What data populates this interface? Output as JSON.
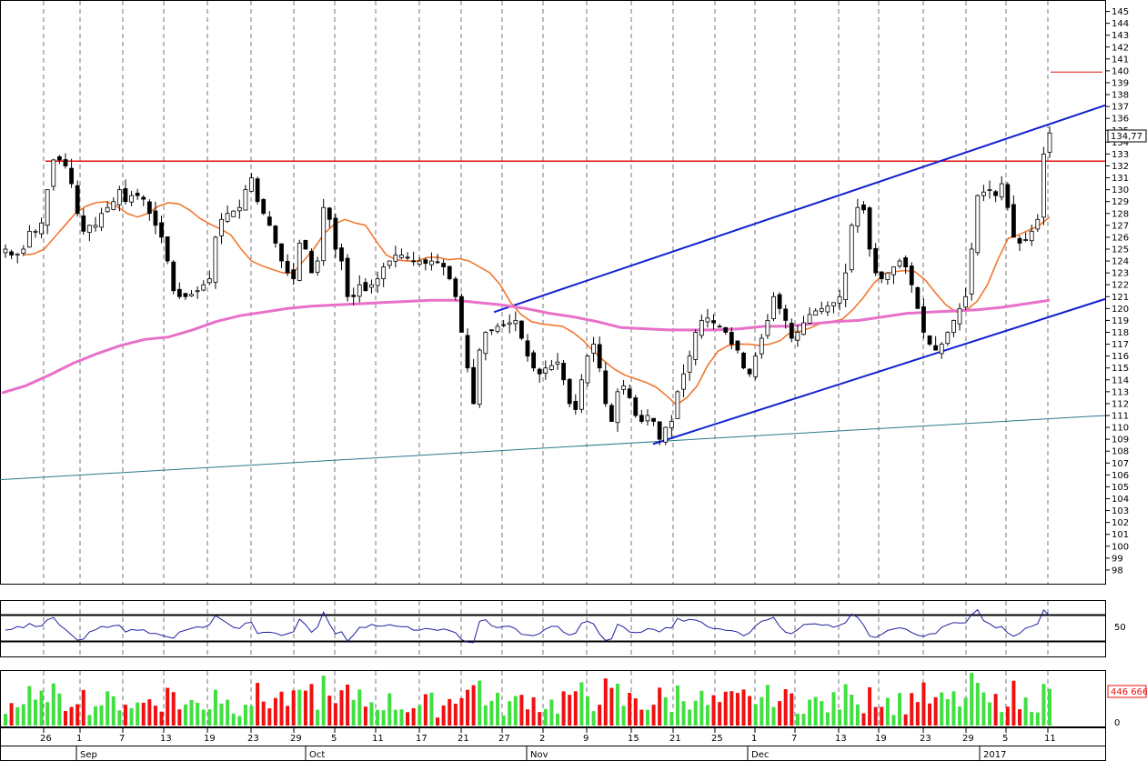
{
  "chart_data": [
    {
      "type": "candlestick",
      "title": "",
      "y_range": [
        97,
        145.5
      ],
      "y_ticks": [
        98,
        99,
        100,
        101,
        102,
        103,
        104,
        105,
        106,
        107,
        108,
        109,
        110,
        111,
        112,
        113,
        114,
        115,
        116,
        117,
        118,
        119,
        120,
        121,
        122,
        123,
        124,
        125,
        126,
        127,
        128,
        129,
        130,
        131,
        132,
        133,
        134,
        135,
        136,
        137,
        138,
        139,
        140,
        141,
        142,
        143,
        144,
        145
      ],
      "last_price_label": "134,77",
      "last_price": 134.77,
      "close_series_approx": [
        125,
        124.5,
        124.6,
        125,
        126.5,
        126.5,
        127.2,
        130,
        132.5,
        132.5,
        132,
        130.5,
        128,
        126.5,
        127,
        127,
        128,
        128.5,
        129,
        130,
        129,
        129.5,
        129.5,
        129.2,
        128,
        127,
        126,
        124,
        121.5,
        121,
        121,
        121.2,
        121.5,
        122,
        122.5,
        126,
        127.5,
        128,
        128.2,
        128.5,
        130,
        131,
        129,
        128,
        127,
        125.5,
        124,
        123,
        122.5,
        125.5,
        125,
        123,
        124,
        128.5,
        127.5,
        125,
        124,
        121,
        121,
        122,
        121.5,
        122,
        122.5,
        123.5,
        124,
        124.5,
        124.5,
        124.3,
        124,
        124,
        123.8,
        124,
        123.9,
        123.5,
        122.5,
        121,
        118,
        115,
        112,
        116.5,
        118,
        118.2,
        118.5,
        118.6,
        118.8,
        119,
        117.5,
        116,
        115,
        114.5,
        115,
        115.2,
        115.5,
        114,
        112,
        111.5,
        114,
        116,
        117,
        115,
        112,
        110.5,
        113,
        113.5,
        112.5,
        111,
        110.5,
        111,
        110.5,
        109,
        110,
        110.5,
        113,
        114.5,
        116,
        118,
        119,
        119.2,
        118.8,
        118.5,
        118,
        117,
        116.5,
        115,
        114.5,
        116,
        117.5,
        119,
        121,
        120,
        119,
        117.5,
        118,
        118.8,
        119.5,
        119.8,
        120,
        120.2,
        120.5,
        121,
        123,
        127,
        128.5,
        128.3,
        125,
        123,
        122.5,
        123,
        123.5,
        124,
        123.5,
        122,
        120,
        118,
        117,
        116.5,
        117,
        118,
        119,
        120,
        121,
        125,
        129.5,
        129.8,
        130,
        129.5,
        130.5,
        128.5,
        126,
        125.5,
        125.8,
        126.5,
        127.5,
        133,
        134.77
      ],
      "moving_averages": [
        {
          "color": "#f07830",
          "values_approx": [
            124.5,
            124.6,
            125,
            126,
            127,
            128,
            128.6,
            128.9,
            129,
            128.6,
            128,
            127.7,
            128,
            128.6,
            128.9,
            128.8,
            128.3,
            127.6,
            127.1,
            126.7,
            126.2,
            125,
            124,
            123.6,
            123.3,
            123,
            123,
            124,
            125,
            126.3,
            127.1,
            127.5,
            127.2,
            127,
            125.7,
            124.5,
            124.1,
            124,
            124,
            124.3,
            124.3,
            124.1,
            124.2,
            124,
            123.5,
            123,
            122,
            120.5,
            119.5,
            118.9,
            118.7,
            118.6,
            118.5,
            118,
            117.3,
            116.4,
            115.6,
            114.9,
            114.4,
            114.1,
            113.8,
            113.4,
            112.7,
            111.9,
            112.5,
            113.5,
            115.2,
            116.4,
            116.9,
            117,
            117,
            116.9,
            117,
            117.3,
            118,
            118.1,
            118.4,
            118.8,
            118.9,
            119.1,
            119.9,
            120.9,
            122.1,
            122.9,
            123.1,
            123.2,
            123.1,
            122.4,
            121.3,
            120.3,
            119.7,
            119.9,
            120.6,
            122,
            124.1,
            125.9,
            126.2,
            126.6,
            127,
            127.7
          ]
        },
        {
          "color": "#e870c8",
          "values_approx": [
            112.9,
            113.5,
            114.4,
            115.4,
            116.2,
            116.9,
            117.4,
            117.6,
            118.2,
            118.9,
            119.4,
            119.7,
            120,
            120.2,
            120.3,
            120.4,
            120.5,
            120.6,
            120.7,
            120.7,
            120.5,
            120.3,
            120,
            119.6,
            119.3,
            118.9,
            118.4,
            118.3,
            118.2,
            118.2,
            118.2,
            118.3,
            118.5,
            118.5,
            118.7,
            118.9,
            119,
            119.3,
            119.6,
            119.7,
            119.8,
            119.9,
            120.1,
            120.4,
            120.7
          ]
        }
      ],
      "resistance_level": 132.4,
      "marker_level": 139.9,
      "upper_channel_from": {
        "date": "Oct 26",
        "value": 119.7
      },
      "upper_channel_to": {
        "date": "Jan 13",
        "value": 137.1
      },
      "lower_channel_from": {
        "date": "Nov 18",
        "value": 108.6
      },
      "lower_channel_to": {
        "date": "Jan 13",
        "value": 120.8
      },
      "long_trendline_from": {
        "date": "Aug",
        "value": 105.6
      },
      "long_trendline_to": {
        "date": "Jan 13",
        "value": 111
      }
    },
    {
      "type": "line",
      "name": "oscillator",
      "y_ticks": [
        50
      ],
      "upper_band": 70,
      "lower_band": 30,
      "color": "#2020a0"
    },
    {
      "type": "bar",
      "name": "volume",
      "last_volume_label": "446 666",
      "y_ticks": [
        0
      ],
      "up_color": "#40e040",
      "down_color": "#f01010"
    }
  ],
  "x_axis": {
    "day_ticks": [
      "26",
      "1",
      "7",
      "13",
      "19",
      "23",
      "29",
      "5",
      "11",
      "17",
      "21",
      "27",
      "2",
      "9",
      "15",
      "21",
      "25",
      "1",
      "7",
      "13",
      "19",
      "23",
      "29",
      "5",
      "11"
    ],
    "month_labels": [
      "Sep",
      "Oct",
      "Nov",
      "Dec",
      "2017"
    ]
  }
}
